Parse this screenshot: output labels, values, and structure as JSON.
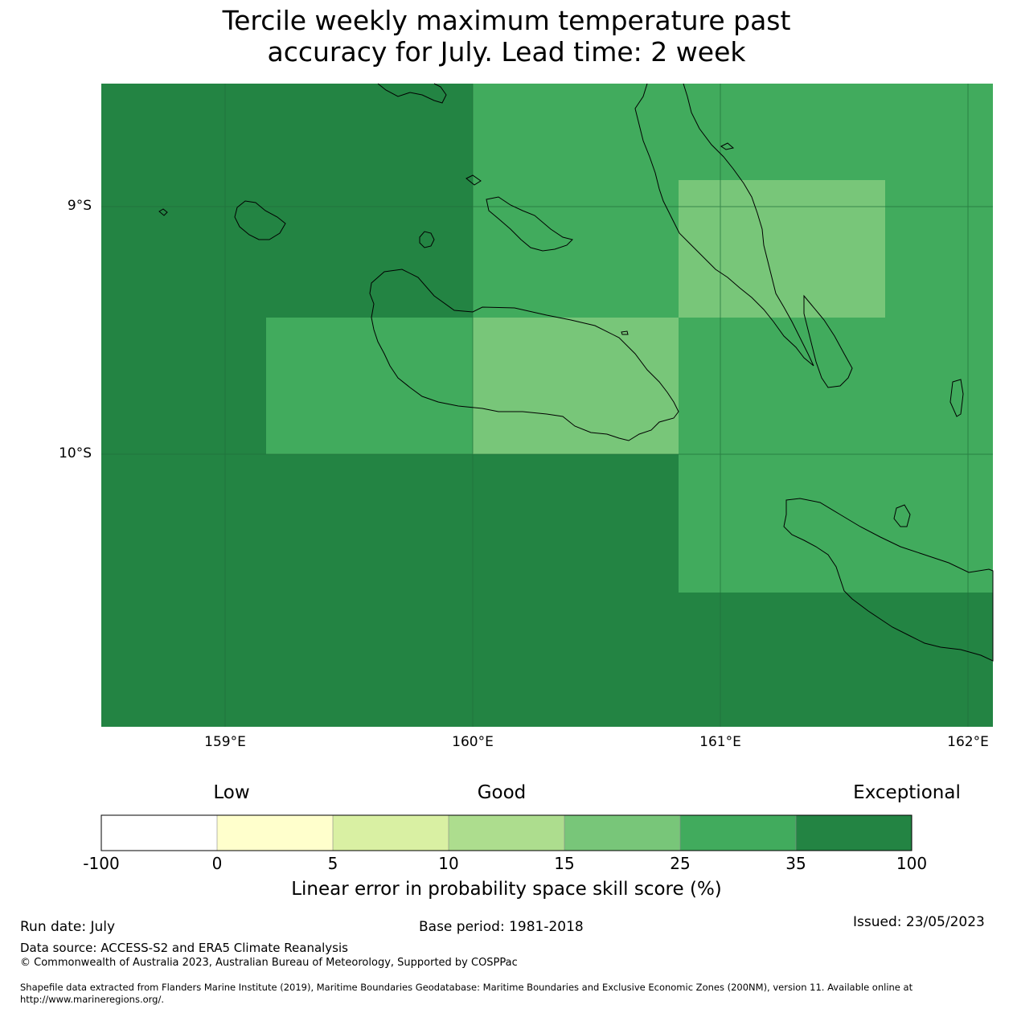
{
  "title": {
    "line1": "Tercile weekly maximum temperature past",
    "line2": "accuracy for July. Lead time: 2 week"
  },
  "map": {
    "lat_labels": [
      "9°S",
      "10°S"
    ],
    "lon_labels": [
      "159°E",
      "160°E",
      "161°E",
      "162°E"
    ],
    "colors": {
      "lvl_35_100": "#238443",
      "lvl_25_35": "#41ab5d",
      "lvl_15_25": "#78c679",
      "grid": "#1f6e3a",
      "coast": "#000000"
    }
  },
  "colorbar": {
    "categories": [
      "Low",
      "Good",
      "Exceptional"
    ],
    "ticks": [
      "-100",
      "0",
      "5",
      "10",
      "15",
      "25",
      "35",
      "100"
    ],
    "colors": [
      "#ffffff",
      "#ffffcc",
      "#d9f0a3",
      "#addd8e",
      "#78c679",
      "#41ab5d",
      "#238443"
    ],
    "label": "Linear error in probability space skill score (%)"
  },
  "footer": {
    "run_date": "Run date: July",
    "base_period": "Base period: 1981-2018",
    "issued": "Issued: 23/05/2023",
    "data_source": "Data source: ACCESS-S2 and ERA5 Climate Reanalysis",
    "copyright": "© Commonwealth of Australia 2023, Australian Bureau of Meteorology, Supported by COSPPac",
    "shapefile_line1": "Shapefile data extracted from Flanders Marine Institute (2019), Maritime Boundaries Geodatabase: Maritime Boundaries and Exclusive Economic Zones (200NM), version 11. Available online at",
    "shapefile_line2": "http://www.marineregions.org/."
  }
}
